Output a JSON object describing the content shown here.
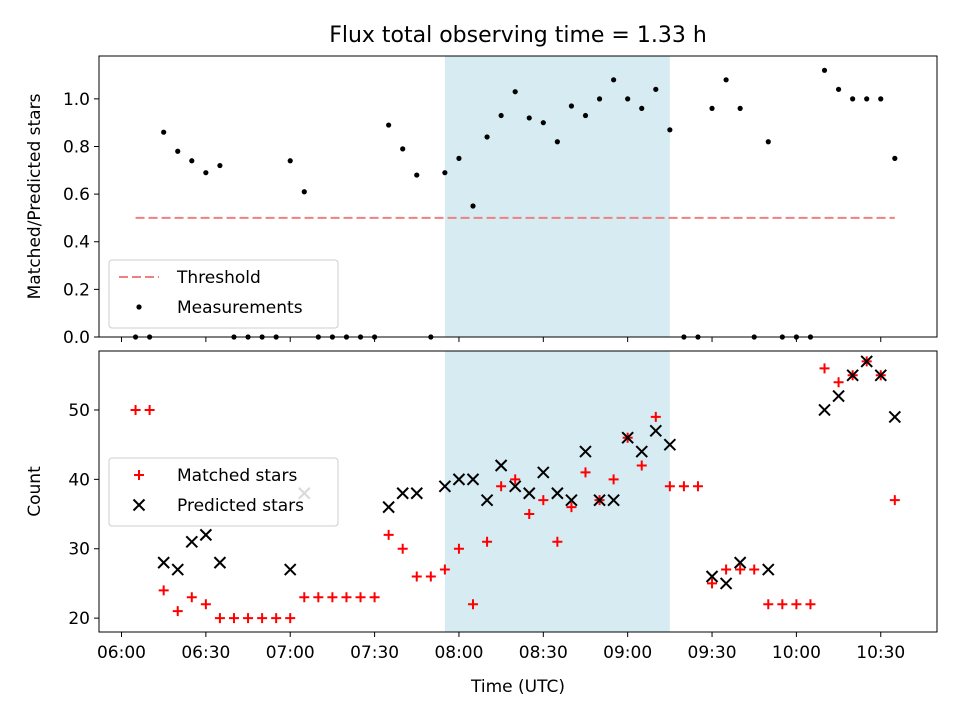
{
  "figure": {
    "title": "Flux total observing time = 1.33 h"
  },
  "chart_data": [
    {
      "type": "scatter",
      "panel": "top",
      "ylabel": "Matched/Predicted stars",
      "ylim": [
        0,
        1.18
      ],
      "yticks": [
        "0.0",
        "0.2",
        "0.4",
        "0.6",
        "0.8",
        "1.0"
      ],
      "xlim": [
        "05:52",
        "10:50"
      ],
      "shaded_interval": [
        "07:55",
        "09:15"
      ],
      "shade_color": "#add8e6",
      "legend": {
        "placement": "lower-left",
        "entries": [
          "Threshold",
          "Measurements"
        ]
      },
      "series": [
        {
          "name": "Threshold",
          "kind": "dashed-line",
          "color": "#f08080",
          "x": [
            "06:05",
            "10:35"
          ],
          "y": [
            0.5,
            0.5
          ]
        },
        {
          "name": "Measurements",
          "kind": "points",
          "color": "#000000",
          "x": [
            "06:05",
            "06:10",
            "06:15",
            "06:20",
            "06:25",
            "06:30",
            "06:35",
            "06:40",
            "06:45",
            "06:50",
            "06:55",
            "07:00",
            "07:05",
            "07:10",
            "07:15",
            "07:20",
            "07:25",
            "07:30",
            "07:35",
            "07:40",
            "07:45",
            "07:50",
            "07:55",
            "08:00",
            "08:05",
            "08:10",
            "08:15",
            "08:20",
            "08:25",
            "08:30",
            "08:35",
            "08:40",
            "08:45",
            "08:50",
            "08:55",
            "09:00",
            "09:05",
            "09:10",
            "09:15",
            "09:20",
            "09:25",
            "09:30",
            "09:35",
            "09:40",
            "09:45",
            "09:50",
            "09:55",
            "10:00",
            "10:05",
            "10:10",
            "10:15",
            "10:20",
            "10:25",
            "10:30",
            "10:35"
          ],
          "y": [
            0,
            0,
            0.86,
            0.78,
            0.74,
            0.69,
            0.72,
            0,
            0,
            0,
            0,
            0.74,
            0.61,
            0,
            0,
            0,
            0,
            0,
            0.89,
            0.79,
            0.68,
            0,
            0.69,
            0.75,
            0.55,
            0.84,
            0.93,
            1.03,
            0.92,
            0.9,
            0.82,
            0.97,
            0.93,
            1.0,
            1.08,
            1.0,
            0.96,
            1.04,
            0.87,
            0,
            0,
            0.96,
            1.08,
            0.96,
            0,
            0.82,
            0,
            0,
            0,
            1.12,
            1.04,
            1.0,
            1.0,
            1.0,
            0.75
          ]
        }
      ]
    },
    {
      "type": "scatter",
      "panel": "bottom",
      "xlabel": "Time (UTC)",
      "ylabel": "Count",
      "ylim": [
        18,
        58.5
      ],
      "yticks": [
        "20",
        "30",
        "40",
        "50"
      ],
      "xlim": [
        "05:52",
        "10:50"
      ],
      "xticks": [
        "06:00",
        "06:30",
        "07:00",
        "07:30",
        "08:00",
        "08:30",
        "09:00",
        "09:30",
        "10:00",
        "10:30"
      ],
      "shaded_interval": [
        "07:55",
        "09:15"
      ],
      "shade_color": "#add8e6",
      "legend": {
        "placement": "center-left",
        "entries": [
          "Matched stars",
          "Predicted stars"
        ]
      },
      "series": [
        {
          "name": "Matched stars",
          "marker": "plus",
          "color": "#ff0000",
          "x": [
            "06:05",
            "06:10",
            "06:15",
            "06:20",
            "06:25",
            "06:30",
            "06:35",
            "06:40",
            "06:45",
            "06:50",
            "06:55",
            "07:00",
            "07:05",
            "07:10",
            "07:15",
            "07:20",
            "07:25",
            "07:30",
            "07:35",
            "07:40",
            "07:45",
            "07:50",
            "07:55",
            "08:00",
            "08:05",
            "08:10",
            "08:15",
            "08:20",
            "08:25",
            "08:30",
            "08:35",
            "08:40",
            "08:45",
            "08:50",
            "08:55",
            "09:00",
            "09:05",
            "09:10",
            "09:15",
            "09:20",
            "09:25",
            "09:30",
            "09:35",
            "09:40",
            "09:45",
            "09:50",
            "09:55",
            "10:00",
            "10:05",
            "10:10",
            "10:15",
            "10:20",
            "10:25",
            "10:30",
            "10:35"
          ],
          "y": [
            50,
            50,
            24,
            21,
            23,
            22,
            20,
            20,
            20,
            20,
            20,
            20,
            23,
            23,
            23,
            23,
            23,
            23,
            32,
            30,
            26,
            26,
            27,
            30,
            22,
            31,
            39,
            40,
            35,
            37,
            31,
            36,
            41,
            37,
            40,
            46,
            42,
            49,
            39,
            39,
            39,
            25,
            27,
            27,
            27,
            22,
            22,
            22,
            22,
            56,
            54,
            55,
            57,
            55,
            37
          ]
        },
        {
          "name": "Predicted stars",
          "marker": "x",
          "color": "#000000",
          "x": [
            "06:15",
            "06:20",
            "06:25",
            "06:30",
            "06:35",
            "07:00",
            "07:05",
            "07:35",
            "07:40",
            "07:45",
            "07:55",
            "08:00",
            "08:05",
            "08:10",
            "08:15",
            "08:20",
            "08:25",
            "08:30",
            "08:35",
            "08:40",
            "08:45",
            "08:50",
            "08:55",
            "09:00",
            "09:05",
            "09:10",
            "09:15",
            "09:30",
            "09:35",
            "09:40",
            "09:50",
            "10:10",
            "10:15",
            "10:20",
            "10:25",
            "10:30",
            "10:35"
          ],
          "y": [
            28,
            27,
            31,
            32,
            28,
            27,
            38,
            36,
            38,
            38,
            39,
            40,
            40,
            37,
            42,
            39,
            38,
            41,
            38,
            37,
            44,
            37,
            37,
            46,
            44,
            47,
            45,
            26,
            25,
            28,
            27,
            50,
            52,
            55,
            57,
            55,
            49
          ]
        }
      ]
    }
  ]
}
